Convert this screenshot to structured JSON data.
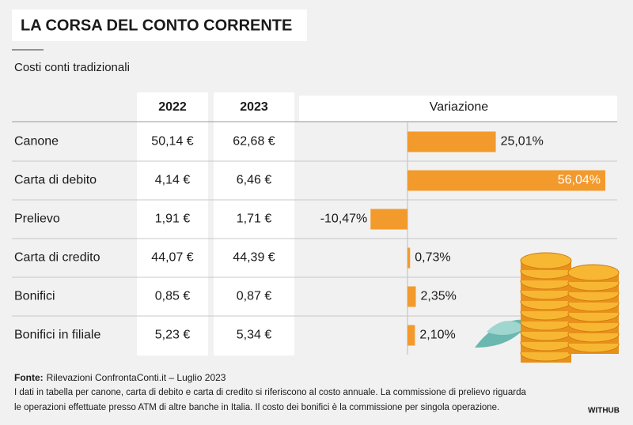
{
  "chart_data": {
    "type": "bar",
    "title": "LA CORSA DEL CONTO CORRENTE",
    "subtitle": "Costi conti tradizionali",
    "columns": [
      "2022",
      "2023",
      "Variazione"
    ],
    "categories": [
      "Canone",
      "Carta di debito",
      "Prelievo",
      "Carta di credito",
      "Bonifici",
      "Bonifici in filiale"
    ],
    "table": [
      [
        "50,14 €",
        "62,68 €"
      ],
      [
        "4,14 €",
        "6,46 €"
      ],
      [
        "1,91 €",
        "1,71 €"
      ],
      [
        "44,07 €",
        "44,39 €"
      ],
      [
        "0,85 €",
        "0,87 €"
      ],
      [
        "5,23 €",
        "5,34 €"
      ]
    ],
    "values": [
      25.01,
      56.04,
      -10.47,
      0.73,
      2.35,
      2.1
    ],
    "value_labels": [
      "25,01%",
      "56,04%",
      "-10,47%",
      "0,73%",
      "2,35%",
      "2,10%"
    ],
    "color": "#f39a2c",
    "source_label": "Fonte:",
    "source": "Rilevazioni ConfrontaConti.it – Luglio 2023",
    "notes": [
      "I dati in tabella per canone, carta di debito e carta di credito si riferiscono al costo annuale. La commissione di prelievo riguarda",
      "le operazioni effettuate presso ATM di altre banche in Italia. Il costo dei bonifici è la commissione per singola operazione."
    ],
    "credit": "WITHUB"
  }
}
